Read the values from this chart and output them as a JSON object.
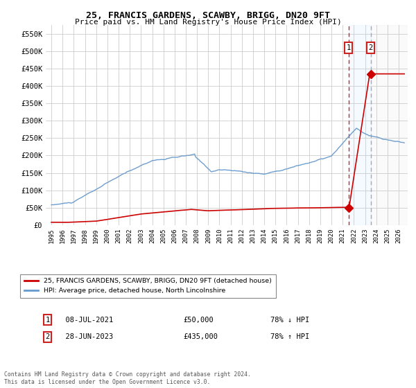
{
  "title": "25, FRANCIS GARDENS, SCAWBY, BRIGG, DN20 9FT",
  "subtitle": "Price paid vs. HM Land Registry's House Price Index (HPI)",
  "xlim_start": 1994.5,
  "xlim_end": 2026.8,
  "ylim": [
    0,
    575000
  ],
  "yticks": [
    0,
    50000,
    100000,
    150000,
    200000,
    250000,
    300000,
    350000,
    400000,
    450000,
    500000,
    550000
  ],
  "ytick_labels": [
    "£0",
    "£50K",
    "£100K",
    "£150K",
    "£200K",
    "£250K",
    "£300K",
    "£350K",
    "£400K",
    "£450K",
    "£500K",
    "£550K"
  ],
  "xticks": [
    1995,
    1996,
    1997,
    1998,
    1999,
    2000,
    2001,
    2002,
    2003,
    2004,
    2005,
    2006,
    2007,
    2008,
    2009,
    2010,
    2011,
    2012,
    2013,
    2014,
    2015,
    2016,
    2017,
    2018,
    2019,
    2020,
    2021,
    2022,
    2023,
    2024,
    2025,
    2026
  ],
  "hpi_color": "#6699cc",
  "price_color": "#cc0000",
  "sale1_x": 2021.52,
  "sale1_y": 50000,
  "sale2_x": 2023.49,
  "sale2_y": 435000,
  "vline1_x": 2021.52,
  "vline2_x": 2023.49,
  "shade_start": 2021.52,
  "shade_end": 2023.49,
  "legend_label_price": "25, FRANCIS GARDENS, SCAWBY, BRIGG, DN20 9FT (detached house)",
  "legend_label_hpi": "HPI: Average price, detached house, North Lincolnshire",
  "table_row1_label": "1",
  "table_row1_date": "08-JUL-2021",
  "table_row1_price": "£50,000",
  "table_row1_hpi": "78% ↓ HPI",
  "table_row2_label": "2",
  "table_row2_date": "28-JUN-2023",
  "table_row2_price": "£435,000",
  "table_row2_hpi": "78% ↑ HPI",
  "footnote": "Contains HM Land Registry data © Crown copyright and database right 2024.\nThis data is licensed under the Open Government Licence v3.0.",
  "background_color": "#ffffff",
  "grid_color": "#cccccc"
}
